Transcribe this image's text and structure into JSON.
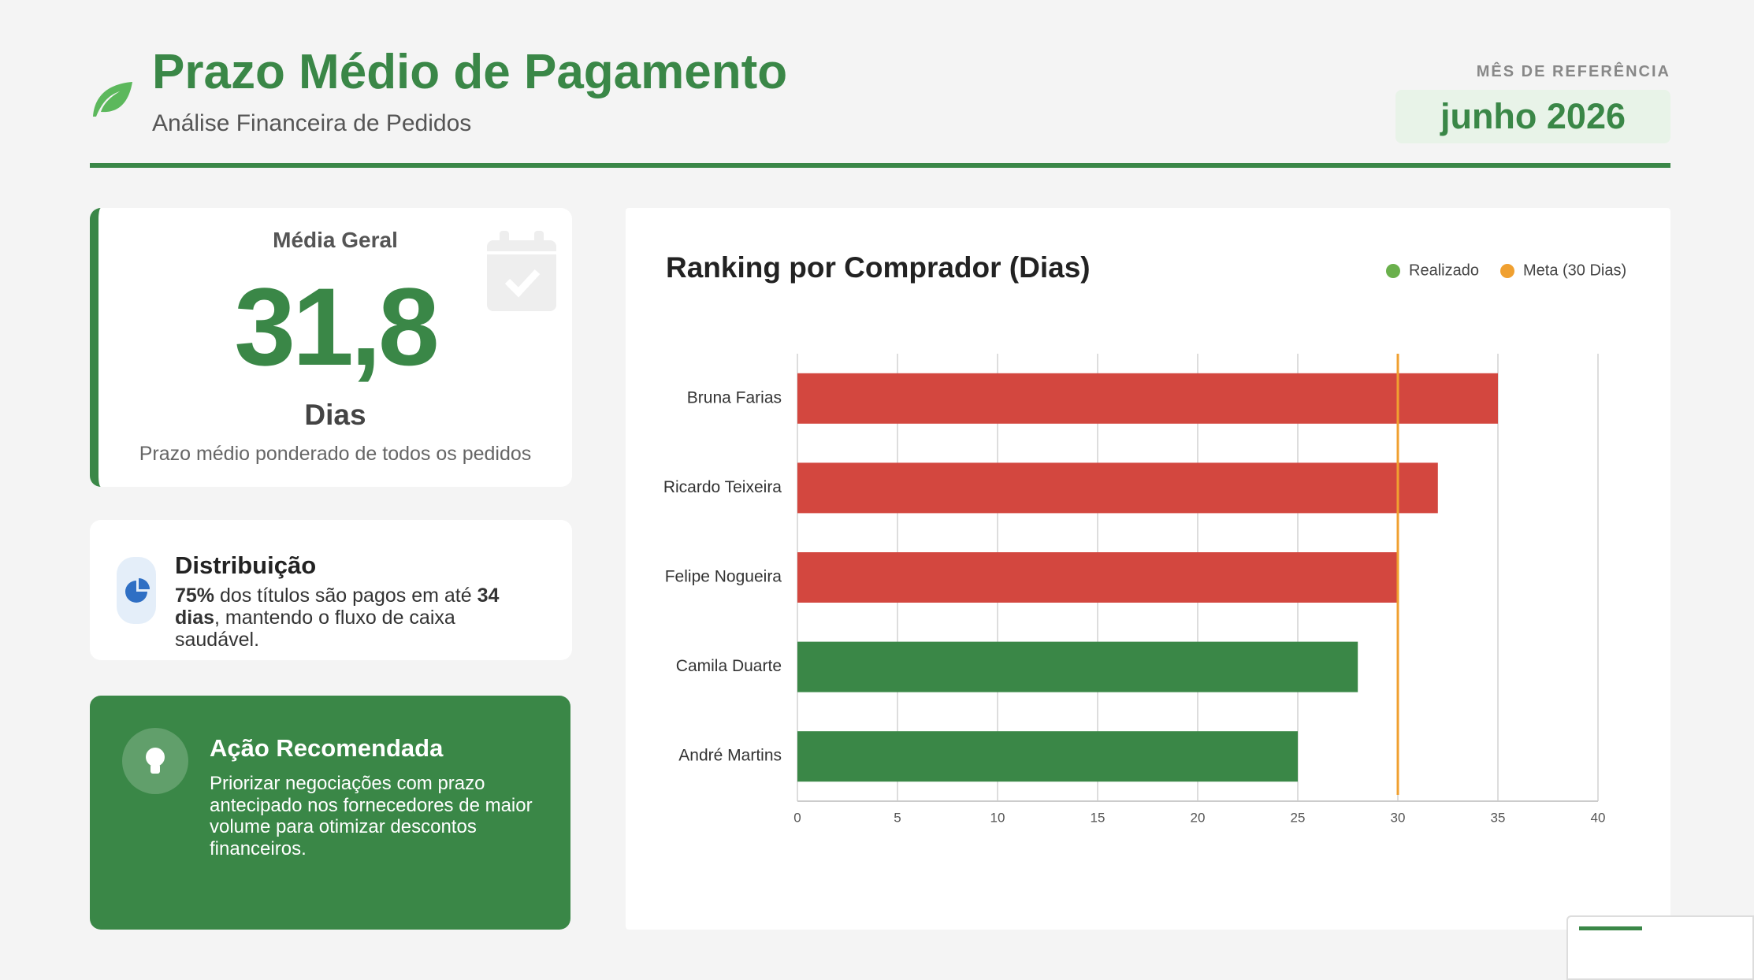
{
  "header": {
    "title": "Prazo Médio de Pagamento",
    "subtitle": "Análise Financeira de Pedidos",
    "ref_label": "MÊS DE REFERÊNCIA",
    "ref_value": "junho 2026"
  },
  "kpi": {
    "title": "Média Geral",
    "value": "31,8",
    "unit": "Dias",
    "note": "Prazo médio ponderado de todos os pedidos"
  },
  "distribution": {
    "title": "Distribuição",
    "text": [
      "75%",
      " dos títulos são pagos em até ",
      "34 dias",
      ", mantendo o fluxo de caixa saudável."
    ]
  },
  "action": {
    "title": "Ação Recomendada",
    "text": "Priorizar negociações com prazo antecipado nos fornecedores de maior volume para otimizar descontos financeiros."
  },
  "chart_data": {
    "type": "hbar",
    "title": "Ranking por Comprador (Dias)",
    "categories": [
      "Bruna Farias",
      "Ricardo Teixeira",
      "Felipe Nogueira",
      "Camila Duarte",
      "André Martins"
    ],
    "series": [
      {
        "name": "Realizado",
        "color": "#6ab04c",
        "values": [
          35,
          32,
          30,
          28,
          25
        ],
        "bar_colors": [
          "#d3473f",
          "#d3473f",
          "#d3473f",
          "#3a8747",
          "#3a8747"
        ]
      }
    ],
    "target": {
      "name": "Meta (30 Dias)",
      "value": 30,
      "color": "#f0a030"
    },
    "xlim": [
      0,
      40
    ],
    "xticks": [
      0,
      5,
      10,
      15,
      20,
      25,
      30,
      35,
      40
    ],
    "grid": true
  }
}
